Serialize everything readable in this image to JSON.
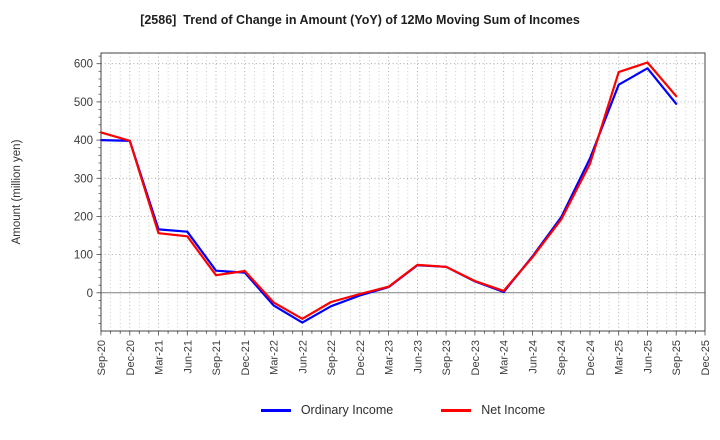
{
  "chart_data": {
    "type": "line",
    "title": "[2586]  Trend of Change in Amount (YoY) of 12Mo Moving Sum of Incomes",
    "ylabel": "Amount (million yen)",
    "xlabel": "",
    "categories": [
      "Sep-20",
      "Dec-20",
      "Mar-21",
      "Jun-21",
      "Sep-21",
      "Dec-21",
      "Mar-22",
      "Jun-22",
      "Sep-22",
      "Dec-22",
      "Mar-23",
      "Jun-23",
      "Sep-23",
      "Dec-23",
      "Mar-24",
      "Jun-24",
      "Sep-24",
      "Dec-24",
      "Mar-25",
      "Jun-25",
      "Sep-25",
      "Dec-25"
    ],
    "series": [
      {
        "name": "Ordinary Income",
        "color": "#0000ff",
        "values": [
          400,
          398,
          166,
          160,
          58,
          53,
          -33,
          -78,
          -35,
          -7,
          15,
          72,
          68,
          30,
          2,
          95,
          198,
          352,
          545,
          588,
          495
        ]
      },
      {
        "name": "Net Income",
        "color": "#ff0000",
        "values": [
          420,
          398,
          156,
          148,
          46,
          57,
          -25,
          -68,
          -24,
          -3,
          16,
          73,
          68,
          31,
          5,
          93,
          192,
          338,
          578,
          603,
          515
        ]
      }
    ],
    "ylim": [
      -100,
      628
    ],
    "yticks": [
      0,
      100,
      200,
      300,
      400,
      500,
      600
    ],
    "grid": true,
    "legend_position": "bottom",
    "note_last_category_has_no_data": true
  },
  "legend": {
    "ordinary_label": "Ordinary Income",
    "net_label": "Net Income"
  },
  "colors": {
    "ordinary": "#0000ff",
    "net": "#ff0000",
    "grid_minor": "#bfbfbf",
    "grid_major": "#9a9a9a",
    "zero_line": "#808080",
    "spine": "#444444"
  }
}
